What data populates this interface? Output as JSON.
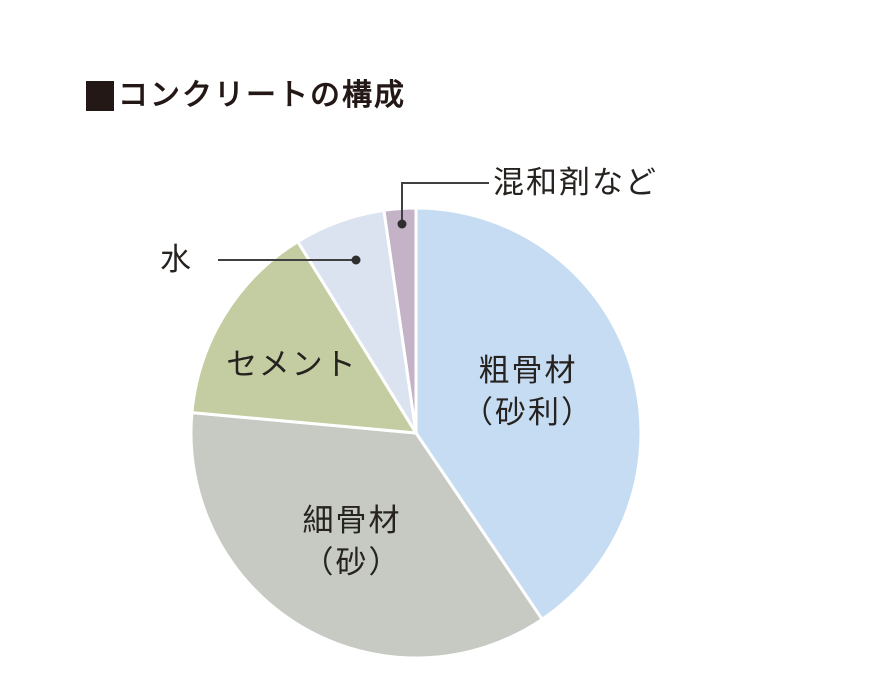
{
  "header": {
    "title": "コンクリートの構成"
  },
  "icons": {
    "title_marker": "black-square"
  },
  "chart_data": {
    "type": "pie",
    "title": "コンクリートの構成",
    "values_shown": false,
    "direction": "clockwise",
    "start_angle_deg": 0,
    "legend_position": "none",
    "slices": [
      {
        "label": "粗骨材（砂利）",
        "label_lines": [
          "粗骨材",
          "（砂利）"
        ],
        "color": "#c6dcf3",
        "angle_deg": 145.9,
        "percent_est": 40.5,
        "label_placement": "inside"
      },
      {
        "label": "細骨材（砂）",
        "label_lines": [
          "細骨材",
          "（砂）"
        ],
        "color": "#c7c9c3",
        "angle_deg": 129.3,
        "percent_est": 35.9,
        "label_placement": "inside"
      },
      {
        "label": "セメント",
        "label_lines": [
          "セメント"
        ],
        "color": "#c4cda2",
        "angle_deg": 53.1,
        "percent_est": 14.8,
        "label_placement": "inside"
      },
      {
        "label": "水",
        "label_lines": [
          "水"
        ],
        "color": "#dbe3f0",
        "angle_deg": 23.5,
        "percent_est": 6.5,
        "label_placement": "callout-left"
      },
      {
        "label": "混和剤など",
        "label_lines": [
          "混和剤など"
        ],
        "color": "#c4b2c7",
        "angle_deg": 8.2,
        "percent_est": 2.3,
        "label_placement": "callout-top"
      }
    ],
    "slice_border_color": "#ffffff",
    "leader_line_color": "#404040",
    "leader_dot_color": "#2e2e2e",
    "text_color": "#262220",
    "title_color": "#231815"
  }
}
